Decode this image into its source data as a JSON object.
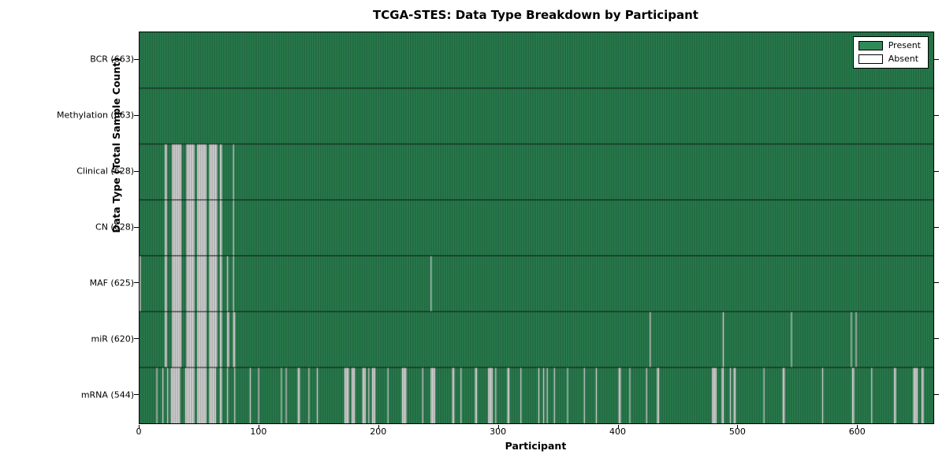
{
  "chart_data": {
    "type": "heatmap",
    "title": "TCGA-STES: Data Type Breakdown by Participant",
    "xlabel": "Participant",
    "ylabel": "Data Type (Total Sample Count)",
    "n_participants": 663,
    "xlim": [
      0,
      663
    ],
    "x_ticks": [
      0,
      100,
      200,
      300,
      400,
      500,
      600
    ],
    "grid": false,
    "legend": {
      "position": "upper right",
      "entries": [
        {
          "label": "Present",
          "color": "#2e8b57"
        },
        {
          "label": "Absent",
          "color": "#ffffff"
        }
      ]
    },
    "colors": {
      "present": "#2e8b57",
      "absent": "#e8e8e8",
      "bar_edge": "rgba(0,0,0,0.45)",
      "row_divider": "rgba(0,0,0,0.85)",
      "plot_border": "#000000"
    },
    "rows": [
      {
        "name": "BCR",
        "count": 663,
        "label": "BCR (663)",
        "absent_ranges": []
      },
      {
        "name": "Methylation",
        "count": 663,
        "label": "Methylation (663)",
        "absent_ranges": []
      },
      {
        "name": "Clinical",
        "count": 628,
        "label": "Clinical (628)",
        "absent_ranges": [
          [
            21,
            22
          ],
          [
            27,
            34
          ],
          [
            39,
            45
          ],
          [
            48,
            55
          ],
          [
            58,
            64
          ],
          [
            67,
            68
          ],
          [
            78,
            78
          ]
        ]
      },
      {
        "name": "CN",
        "count": 628,
        "label": "CN (628)",
        "absent_ranges": [
          [
            21,
            22
          ],
          [
            27,
            34
          ],
          [
            39,
            45
          ],
          [
            48,
            55
          ],
          [
            58,
            64
          ],
          [
            67,
            68
          ],
          [
            78,
            78
          ]
        ]
      },
      {
        "name": "MAF",
        "count": 625,
        "label": "MAF (625)",
        "absent_ranges": [
          [
            0,
            0
          ],
          [
            21,
            22
          ],
          [
            27,
            34
          ],
          [
            39,
            45
          ],
          [
            48,
            55
          ],
          [
            58,
            64
          ],
          [
            67,
            68
          ],
          [
            73,
            73
          ],
          [
            78,
            78
          ],
          [
            243,
            243
          ]
        ]
      },
      {
        "name": "miR",
        "count": 620,
        "label": "miR (620)",
        "absent_ranges": [
          [
            21,
            22
          ],
          [
            27,
            34
          ],
          [
            39,
            45
          ],
          [
            48,
            55
          ],
          [
            58,
            64
          ],
          [
            67,
            68
          ],
          [
            73,
            74
          ],
          [
            78,
            79
          ],
          [
            426,
            426
          ],
          [
            487,
            487
          ],
          [
            544,
            544
          ],
          [
            594,
            594
          ],
          [
            598,
            598
          ]
        ]
      },
      {
        "name": "mRNA",
        "count": 544,
        "label": "mRNA (544)",
        "absent_ranges": [
          [
            14,
            14
          ],
          [
            19,
            19
          ],
          [
            23,
            23
          ],
          [
            26,
            33
          ],
          [
            38,
            45
          ],
          [
            48,
            55
          ],
          [
            58,
            63
          ],
          [
            67,
            68
          ],
          [
            73,
            73
          ],
          [
            79,
            79
          ],
          [
            92,
            92
          ],
          [
            99,
            99
          ],
          [
            118,
            118
          ],
          [
            122,
            122
          ],
          [
            132,
            133
          ],
          [
            141,
            141
          ],
          [
            148,
            148
          ],
          [
            171,
            174
          ],
          [
            177,
            179
          ],
          [
            186,
            188
          ],
          [
            191,
            191
          ],
          [
            194,
            196
          ],
          [
            207,
            207
          ],
          [
            219,
            222
          ],
          [
            236,
            236
          ],
          [
            243,
            246
          ],
          [
            261,
            262
          ],
          [
            268,
            268
          ],
          [
            280,
            281
          ],
          [
            291,
            294
          ],
          [
            297,
            297
          ],
          [
            307,
            308
          ],
          [
            318,
            318
          ],
          [
            333,
            333
          ],
          [
            337,
            337
          ],
          [
            340,
            340
          ],
          [
            346,
            346
          ],
          [
            357,
            357
          ],
          [
            371,
            371
          ],
          [
            381,
            381
          ],
          [
            400,
            401
          ],
          [
            409,
            409
          ],
          [
            423,
            423
          ],
          [
            432,
            433
          ],
          [
            478,
            481
          ],
          [
            486,
            487
          ],
          [
            493,
            493
          ],
          [
            496,
            497
          ],
          [
            521,
            521
          ],
          [
            537,
            538
          ],
          [
            570,
            570
          ],
          [
            595,
            596
          ],
          [
            611,
            611
          ],
          [
            630,
            631
          ],
          [
            646,
            649
          ],
          [
            653,
            654
          ]
        ]
      }
    ]
  }
}
